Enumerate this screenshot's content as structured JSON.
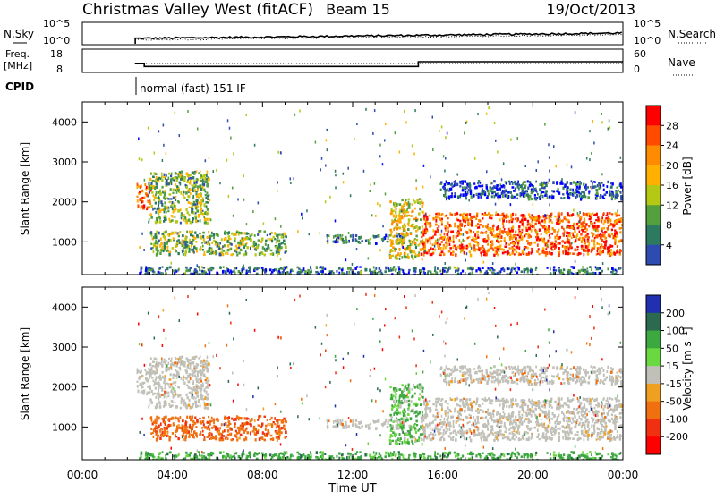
{
  "header": {
    "title": "Christmas Valley West (fitACF)",
    "beam": "Beam 15",
    "date": "19/Oct/2013"
  },
  "sky_panel": {
    "left_label": "N.Sky",
    "right_label": "N.Search",
    "left_ticks": [
      "10^5",
      "10^0"
    ],
    "right_ticks": [
      "10^5",
      "10^0"
    ]
  },
  "freq_panel": {
    "left_label_1": "Freq.",
    "left_label_2": "[MHz]",
    "left_ticks": [
      "18",
      "8"
    ],
    "right_label": "Nave",
    "right_ticks": [
      "60",
      "0"
    ]
  },
  "cpid": {
    "label": "CPID",
    "value": "normal (fast) 151 IF"
  },
  "power_panel": {
    "ylabel": "Slant Range [km]",
    "yticks": [
      "4000",
      "3000",
      "2000",
      "1000"
    ],
    "colorbar_title": "Power [dB]",
    "colorbar_ticks": [
      "28",
      "24",
      "20",
      "16",
      "12",
      "8",
      "4"
    ],
    "colors": [
      "#ff0000",
      "#ff4a00",
      "#ff8c00",
      "#ffb000",
      "#b4c814",
      "#54a03c",
      "#2c7a60",
      "#2e4cb0",
      "#0000ff"
    ]
  },
  "velocity_panel": {
    "ylabel": "Slant Range [km]",
    "yticks": [
      "4000",
      "3000",
      "2000",
      "1000"
    ],
    "colorbar_title": "Velocity [m s⁻¹]",
    "colorbar_ticks": [
      "200",
      "100",
      "50",
      "15",
      "-15",
      "-50",
      "-100",
      "-200"
    ],
    "colors": [
      "#2030b0",
      "#2c6a50",
      "#3ca840",
      "#6ad840",
      "#c0c0b8",
      "#f0a020",
      "#f07010",
      "#f03010",
      "#ff0000"
    ],
    "ground_scatter_color": "#c0c0b8"
  },
  "x_axis": {
    "label": "Time UT",
    "ticks": [
      "00:00",
      "04:00",
      "08:00",
      "12:00",
      "16:00",
      "20:00",
      "00:00"
    ]
  },
  "chart_data": {
    "type": "heatmap",
    "title": "Christmas Valley West (fitACF)",
    "xlabel": "Time UT",
    "ylabel": "Slant Range [km]",
    "xlim": [
      "00:00",
      "24:00"
    ],
    "ylim": [
      180,
      4500
    ],
    "frequency_mhz": {
      "x": [
        "00:00",
        "02:20",
        "02:20",
        "02:45",
        "02:45",
        "14:55",
        "14:55",
        "24:00"
      ],
      "y": [
        null,
        null,
        12,
        12,
        10.5,
        10.5,
        12.8,
        12.8
      ]
    },
    "echo_regions": [
      {
        "t0": 2.4,
        "t1": 3.0,
        "r0": 1850,
        "r1": 2500,
        "power_db": 24,
        "velocity": -15
      },
      {
        "t0": 2.9,
        "t1": 5.6,
        "r0": 1500,
        "r1": 2800,
        "power_db": 14,
        "velocity": -15
      },
      {
        "t0": 3.0,
        "t1": 9.0,
        "r0": 700,
        "r1": 1300,
        "power_db": 14,
        "velocity": -60
      },
      {
        "t0": 10.8,
        "t1": 14.3,
        "r0": 1000,
        "r1": 1200,
        "power_db": 10,
        "velocity": -15
      },
      {
        "t0": 13.6,
        "t1": 15.1,
        "r0": 600,
        "r1": 2100,
        "power_db": 18,
        "velocity": 30
      },
      {
        "t0": 15.0,
        "t1": 24.0,
        "r0": 700,
        "r1": 1750,
        "power_db": 26,
        "velocity": -15
      },
      {
        "t0": 15.8,
        "t1": 24.0,
        "r0": 2100,
        "r1": 2550,
        "power_db": 6,
        "velocity": -15
      },
      {
        "t0": 2.5,
        "t1": 24.0,
        "r0": 180,
        "r1": 400,
        "power_db": 8,
        "velocity": 50
      }
    ]
  }
}
